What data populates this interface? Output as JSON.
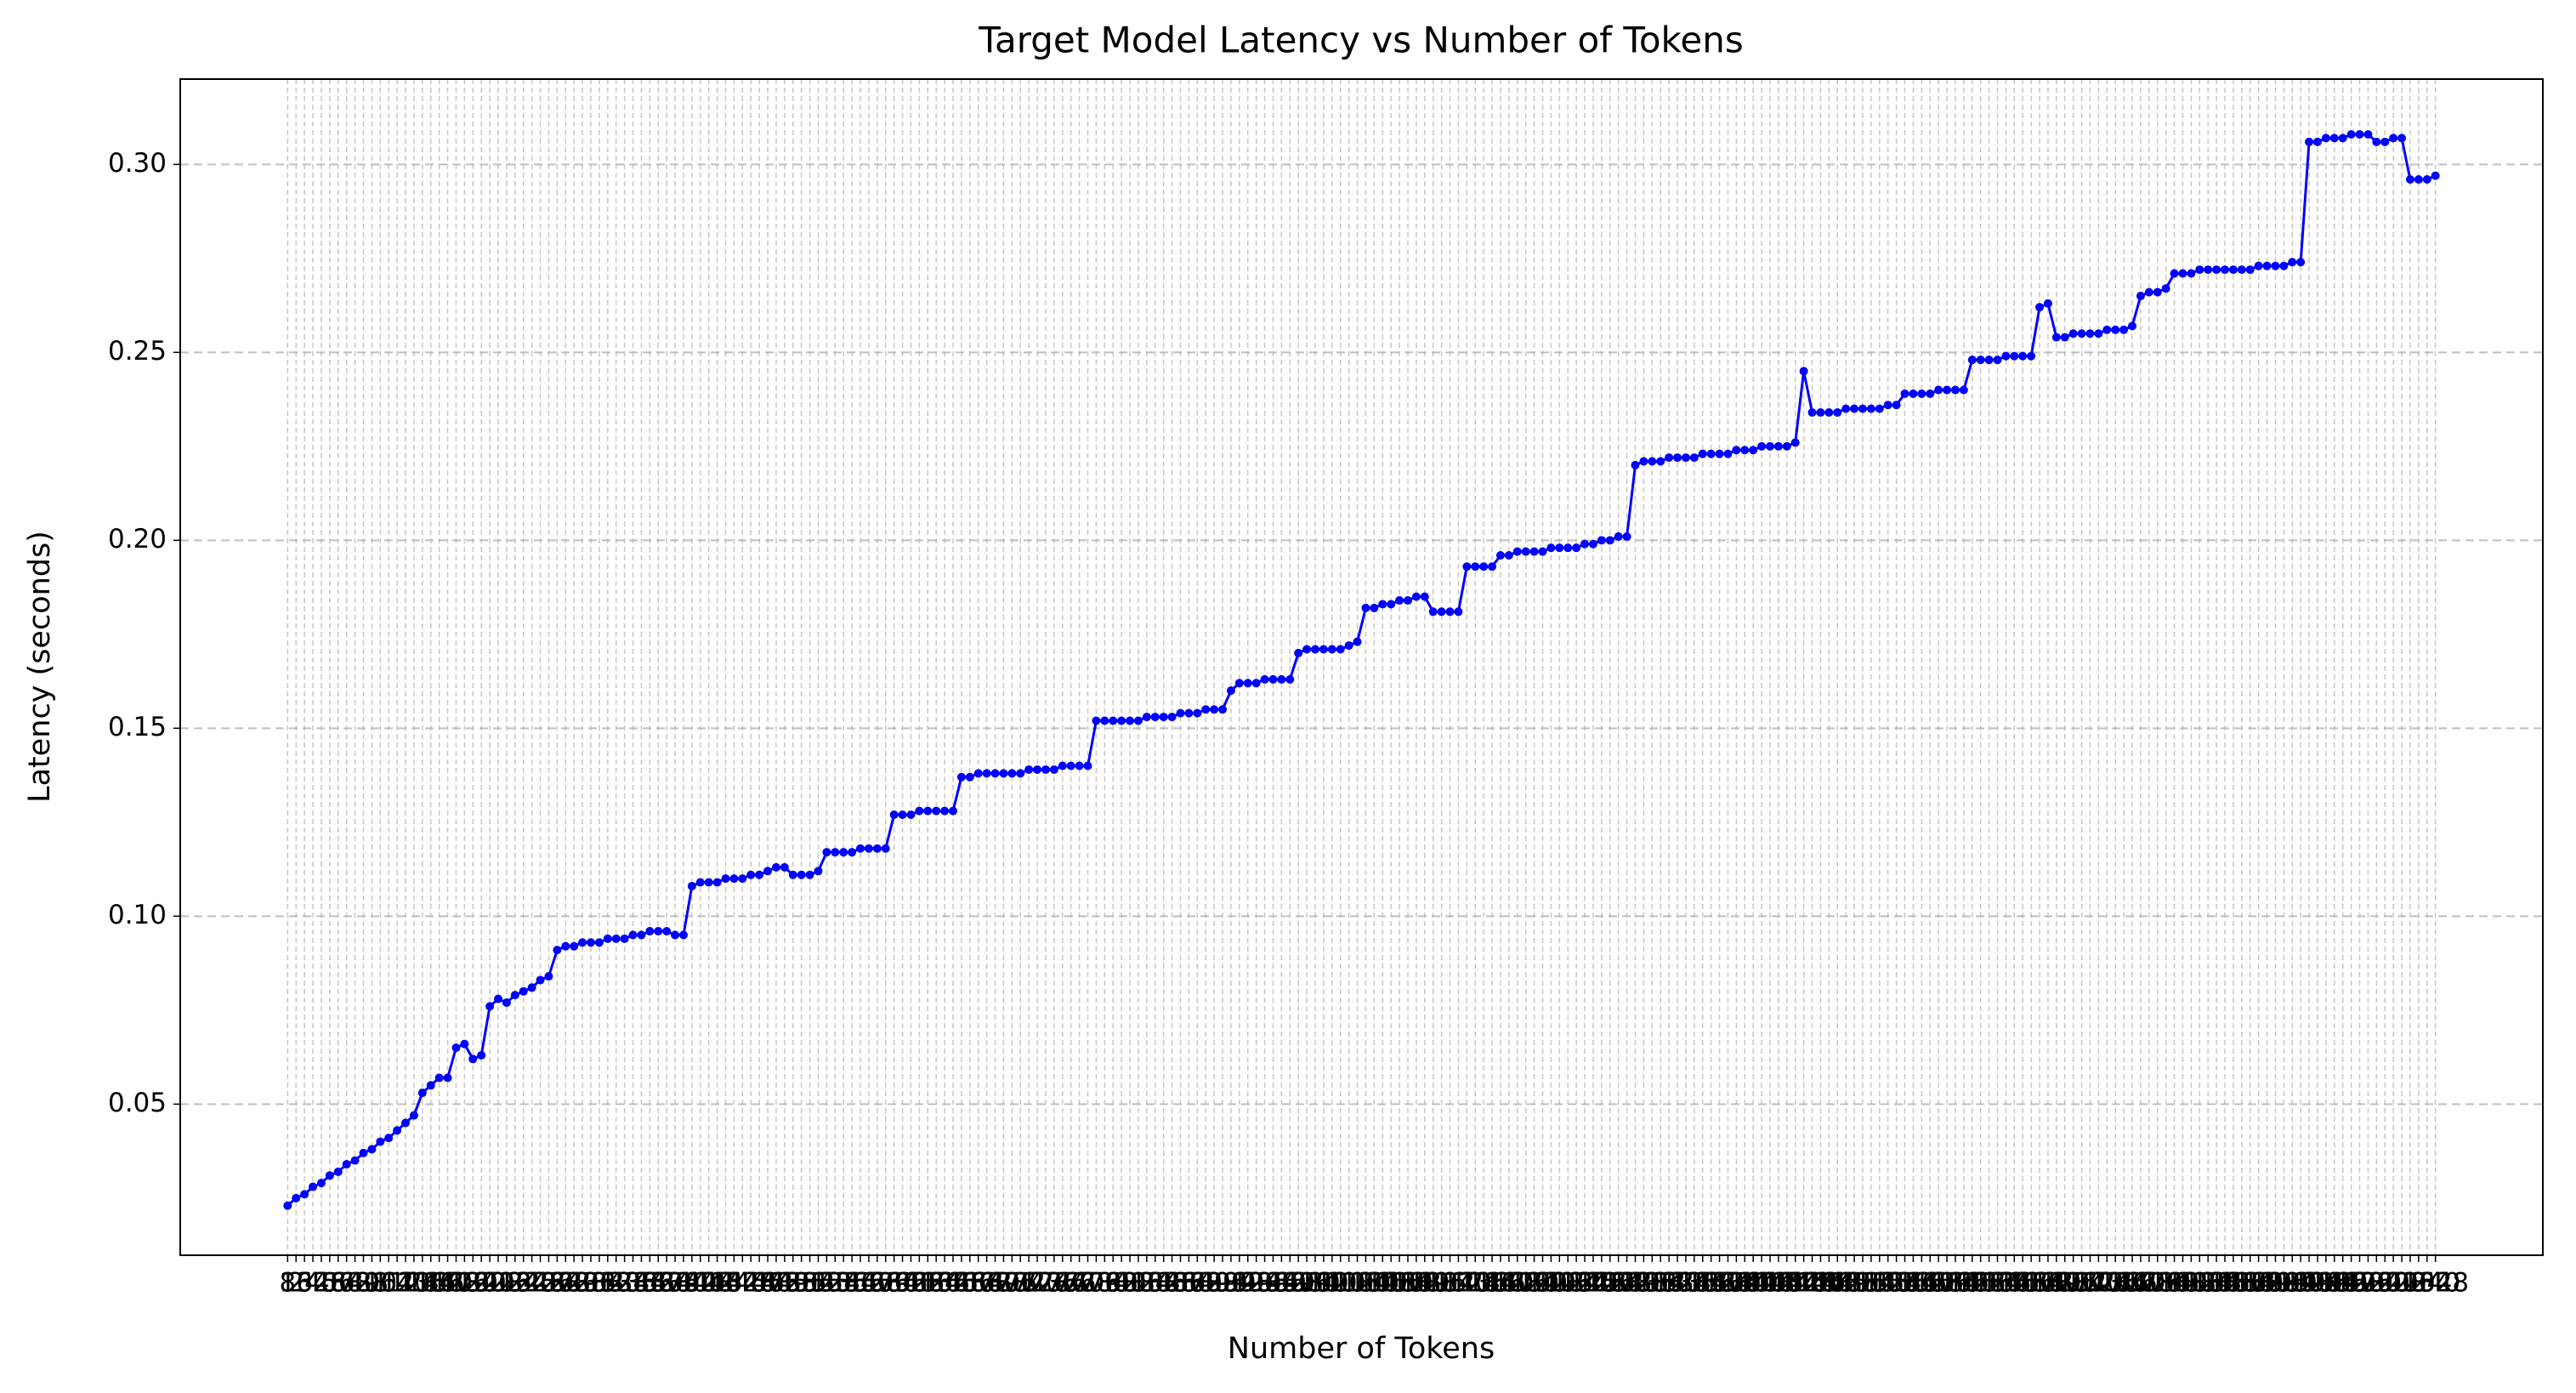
{
  "chart_data": {
    "type": "line",
    "title": "Target Model Latency vs Number of Tokens",
    "xlabel": "Number of Tokens",
    "ylabel": "Latency (seconds)",
    "categories": [
      "8",
      "16",
      "24",
      "32",
      "40",
      "48",
      "56",
      "64",
      "72",
      "80",
      "88",
      "96",
      "104",
      "112",
      "120",
      "128",
      "136",
      "144",
      "152",
      "160",
      "168",
      "176",
      "184",
      "192",
      "200",
      "208",
      "216",
      "224",
      "232",
      "240",
      "248",
      "256",
      "264",
      "272",
      "280",
      "288",
      "296",
      "304",
      "312",
      "320",
      "328",
      "336",
      "344",
      "352",
      "360",
      "368",
      "376",
      "384",
      "392",
      "400",
      "408",
      "416",
      "424",
      "432",
      "440",
      "448",
      "456",
      "464",
      "472",
      "480",
      "488",
      "496",
      "504",
      "512",
      "520",
      "528",
      "536",
      "544",
      "552",
      "560",
      "568",
      "576",
      "584",
      "592",
      "600",
      "608",
      "616",
      "624",
      "632",
      "640",
      "648",
      "656",
      "664",
      "672",
      "680",
      "688",
      "696",
      "704",
      "712",
      "720",
      "728",
      "736",
      "744",
      "752",
      "760",
      "768",
      "776",
      "784",
      "792",
      "800",
      "808",
      "816",
      "824",
      "832",
      "840",
      "848",
      "856",
      "864",
      "872",
      "880",
      "888",
      "896",
      "904",
      "912",
      "920",
      "928",
      "936",
      "944",
      "952",
      "960",
      "968",
      "976",
      "984",
      "992",
      "1000",
      "1008",
      "1016",
      "1024",
      "1032",
      "1040",
      "1048",
      "1056",
      "1064",
      "1072",
      "1080",
      "1088",
      "1096",
      "1104",
      "1112",
      "1120",
      "1128",
      "1136",
      "1144",
      "1152",
      "1160",
      "1168",
      "1176",
      "1184",
      "1192",
      "1200",
      "1208",
      "1216",
      "1224",
      "1232",
      "1240",
      "1248",
      "1256",
      "1264",
      "1272",
      "1280",
      "1288",
      "1296",
      "1304",
      "1312",
      "1320",
      "1328",
      "1336",
      "1344",
      "1352",
      "1360",
      "1368",
      "1376",
      "1384",
      "1392",
      "1400",
      "1408",
      "1416",
      "1424",
      "1432",
      "1440",
      "1448",
      "1456",
      "1464",
      "1472",
      "1480",
      "1488",
      "1496",
      "1504",
      "1512",
      "1520",
      "1528",
      "1536",
      "1544",
      "1552",
      "1560",
      "1568",
      "1576",
      "1584",
      "1592",
      "1600",
      "1608",
      "1616",
      "1624",
      "1632",
      "1640",
      "1648",
      "1656",
      "1664",
      "1672",
      "1680",
      "1688",
      "1696",
      "1704",
      "1712",
      "1720",
      "1728",
      "1736",
      "1744",
      "1752",
      "1760",
      "1768",
      "1776",
      "1784",
      "1792",
      "1800",
      "1808",
      "1816",
      "1824",
      "1832",
      "1840",
      "1848",
      "1856",
      "1864",
      "1872",
      "1880",
      "1888",
      "1896",
      "1904",
      "1912",
      "1920",
      "1928",
      "1936",
      "1944",
      "1952",
      "1960",
      "1968",
      "1976",
      "1984",
      "1992",
      "2000",
      "2008",
      "2016",
      "2024",
      "2032",
      "2040",
      "2048"
    ],
    "values": [
      0.023,
      0.025,
      0.026,
      0.028,
      0.029,
      0.031,
      0.032,
      0.034,
      0.035,
      0.037,
      0.038,
      0.04,
      0.041,
      0.043,
      0.045,
      0.047,
      0.053,
      0.055,
      0.057,
      0.057,
      0.065,
      0.066,
      0.062,
      0.063,
      0.076,
      0.078,
      0.077,
      0.079,
      0.08,
      0.081,
      0.083,
      0.084,
      0.091,
      0.092,
      0.092,
      0.093,
      0.093,
      0.093,
      0.094,
      0.094,
      0.094,
      0.095,
      0.095,
      0.096,
      0.096,
      0.096,
      0.095,
      0.095,
      0.108,
      0.109,
      0.109,
      0.109,
      0.11,
      0.11,
      0.11,
      0.111,
      0.111,
      0.112,
      0.113,
      0.113,
      0.111,
      0.111,
      0.111,
      0.112,
      0.117,
      0.117,
      0.117,
      0.117,
      0.118,
      0.118,
      0.118,
      0.118,
      0.127,
      0.127,
      0.127,
      0.128,
      0.128,
      0.128,
      0.128,
      0.128,
      0.137,
      0.137,
      0.138,
      0.138,
      0.138,
      0.138,
      0.138,
      0.138,
      0.139,
      0.139,
      0.139,
      0.139,
      0.14,
      0.14,
      0.14,
      0.14,
      0.152,
      0.152,
      0.152,
      0.152,
      0.152,
      0.152,
      0.153,
      0.153,
      0.153,
      0.153,
      0.154,
      0.154,
      0.154,
      0.155,
      0.155,
      0.155,
      0.16,
      0.162,
      0.162,
      0.162,
      0.163,
      0.163,
      0.163,
      0.163,
      0.17,
      0.171,
      0.171,
      0.171,
      0.171,
      0.171,
      0.172,
      0.173,
      0.182,
      0.182,
      0.183,
      0.183,
      0.184,
      0.184,
      0.185,
      0.185,
      0.181,
      0.181,
      0.181,
      0.181,
      0.193,
      0.193,
      0.193,
      0.193,
      0.196,
      0.196,
      0.197,
      0.197,
      0.197,
      0.197,
      0.198,
      0.198,
      0.198,
      0.198,
      0.199,
      0.199,
      0.2,
      0.2,
      0.201,
      0.201,
      0.22,
      0.221,
      0.221,
      0.221,
      0.222,
      0.222,
      0.222,
      0.222,
      0.223,
      0.223,
      0.223,
      0.223,
      0.224,
      0.224,
      0.224,
      0.225,
      0.225,
      0.225,
      0.225,
      0.226,
      0.245,
      0.234,
      0.234,
      0.234,
      0.234,
      0.235,
      0.235,
      0.235,
      0.235,
      0.235,
      0.236,
      0.236,
      0.239,
      0.239,
      0.239,
      0.239,
      0.24,
      0.24,
      0.24,
      0.24,
      0.248,
      0.248,
      0.248,
      0.248,
      0.249,
      0.249,
      0.249,
      0.249,
      0.262,
      0.263,
      0.254,
      0.254,
      0.255,
      0.255,
      0.255,
      0.255,
      0.256,
      0.256,
      0.256,
      0.257,
      0.265,
      0.266,
      0.266,
      0.267,
      0.271,
      0.271,
      0.271,
      0.272,
      0.272,
      0.272,
      0.272,
      0.272,
      0.272,
      0.272,
      0.273,
      0.273,
      0.273,
      0.273,
      0.274,
      0.274,
      0.306,
      0.306,
      0.307,
      0.307,
      0.307,
      0.308,
      0.308,
      0.308,
      0.306,
      0.306,
      0.307,
      0.307,
      0.296,
      0.296,
      0.296,
      0.297
    ],
    "color": "#0000ff",
    "ylim": [
      0.0098,
      0.3227
    ],
    "yticks": [
      {
        "value": 0.05,
        "label": "0.05"
      },
      {
        "value": 0.1,
        "label": "0.10"
      },
      {
        "value": 0.15,
        "label": "0.15"
      },
      {
        "value": 0.2,
        "label": "0.20"
      },
      {
        "value": 0.25,
        "label": "0.25"
      },
      {
        "value": 0.3,
        "label": "0.30"
      }
    ],
    "grid": true,
    "markers": true
  }
}
